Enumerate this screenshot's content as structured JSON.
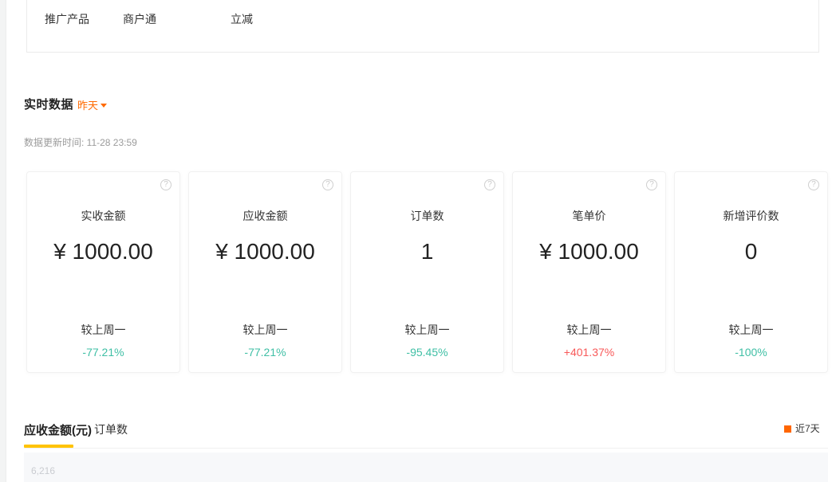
{
  "nav": {
    "items": [
      "推广产品",
      "商户通",
      "立减"
    ]
  },
  "realtime": {
    "title": "实时数据",
    "period": "昨天",
    "update_time": "数据更新时间: 11-28 23:59",
    "cards": [
      {
        "title": "实收金额",
        "value": "¥ 1000.00",
        "compare_label": "较上周一",
        "change": "-77.21%",
        "trend": "down"
      },
      {
        "title": "应收金额",
        "value": "¥ 1000.00",
        "compare_label": "较上周一",
        "change": "-77.21%",
        "trend": "down"
      },
      {
        "title": "订单数",
        "value": "1",
        "compare_label": "较上周一",
        "change": "-95.45%",
        "trend": "down"
      },
      {
        "title": "笔单价",
        "value": "¥ 1000.00",
        "compare_label": "较上周一",
        "change": "+401.37%",
        "trend": "up"
      },
      {
        "title": "新增评价数",
        "value": "0",
        "compare_label": "较上周一",
        "change": "-100%",
        "trend": "down"
      }
    ],
    "help_icon_glyph": "?"
  },
  "chart": {
    "tabs": [
      "应收金额(元)",
      "订单数"
    ],
    "active_tab": "应收金额(元)",
    "legend": "近7天",
    "y_axis_top_label": "6,216"
  },
  "colors": {
    "accent_orange": "#ff6a00",
    "legend_orange": "#ff6600",
    "brand_yellow": "#ffc300",
    "decrease_teal": "#3fbfa5",
    "increase_red": "#f85959"
  }
}
